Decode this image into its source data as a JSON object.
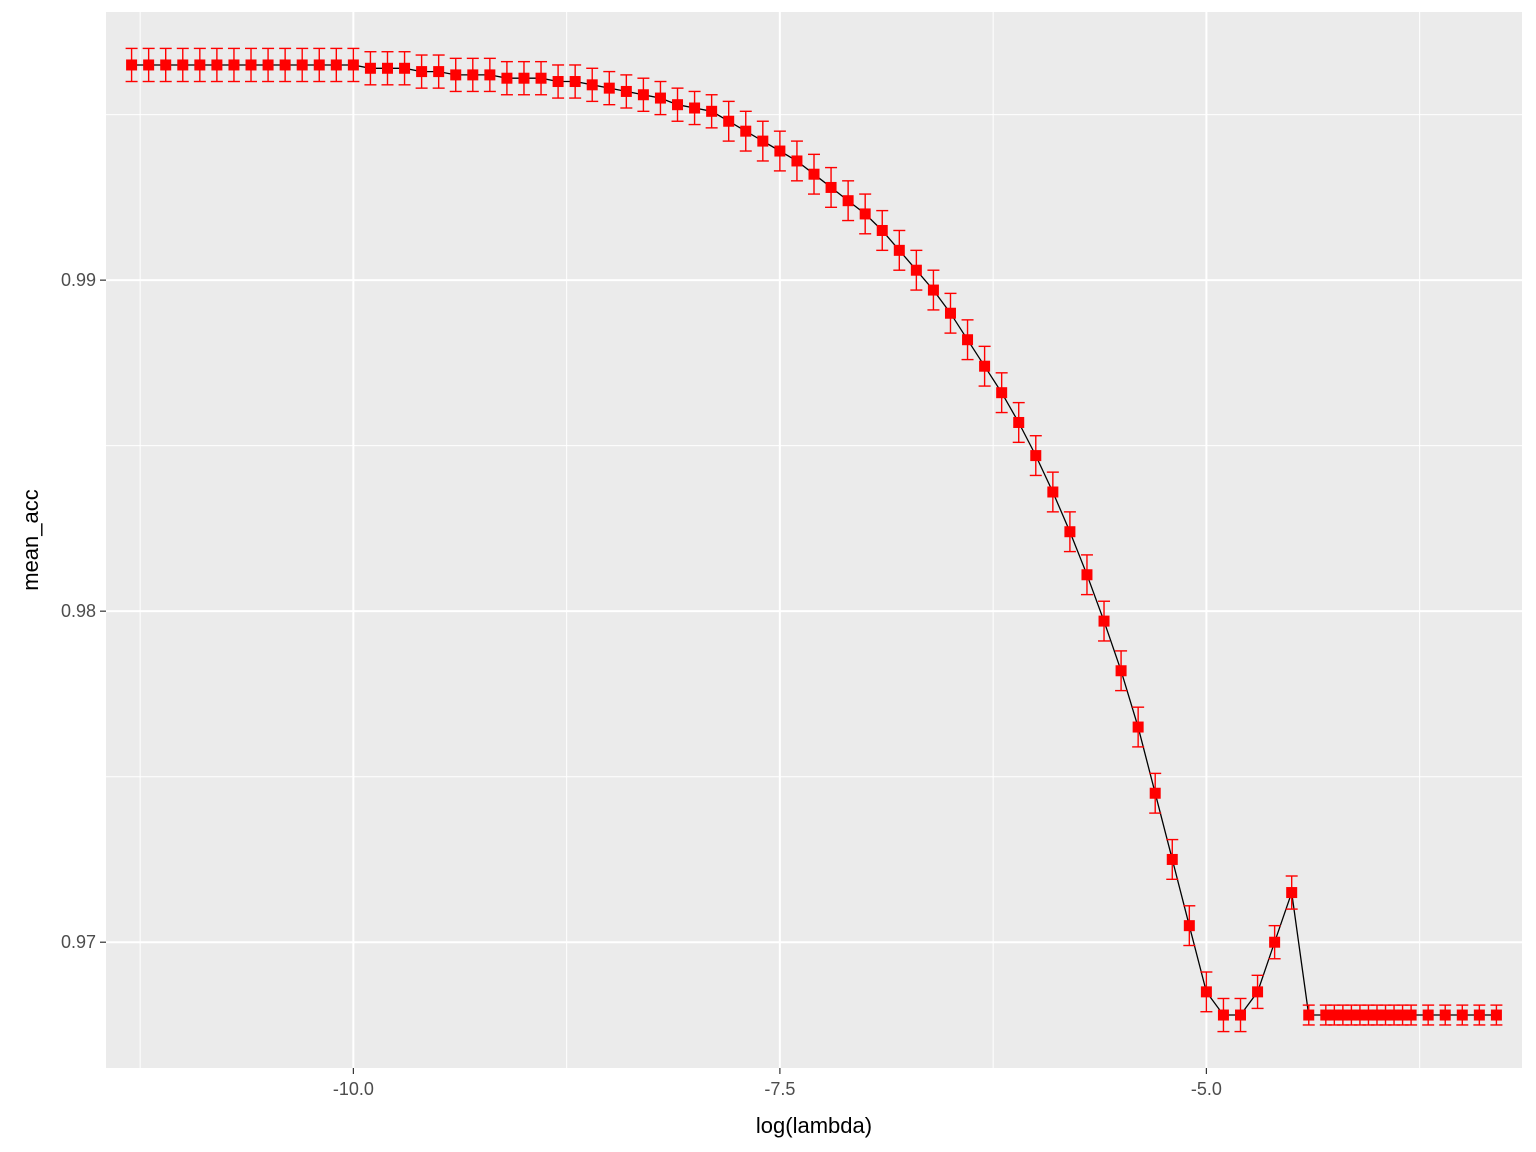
{
  "chart_data": {
    "type": "scatter",
    "xlabel": "log(lambda)",
    "ylabel": "mean_acc",
    "xlim": [
      -11.45,
      -3.15
    ],
    "ylim": [
      0.9662,
      0.9981
    ],
    "x_ticks": [
      -10.0,
      -7.5,
      -5.0
    ],
    "x_tick_labels": [
      "-10.0",
      "-7.5",
      "-5.0"
    ],
    "y_ticks": [
      0.97,
      0.98,
      0.99
    ],
    "y_tick_labels": [
      "0.97",
      "0.98",
      "0.99"
    ],
    "grid": true,
    "background": "#ebebeb",
    "colors": {
      "points": "#ff0000",
      "errorbars": "#ff0000",
      "line": "#000000",
      "grid_major": "#ffffff"
    },
    "series": [
      {
        "type": "line_with_errorbars",
        "x": [
          -11.3,
          -11.2,
          -11.1,
          -11.0,
          -10.9,
          -10.8,
          -10.7,
          -10.6,
          -10.5,
          -10.4,
          -10.3,
          -10.2,
          -10.1,
          -10.0,
          -9.9,
          -9.8,
          -9.7,
          -9.6,
          -9.5,
          -9.4,
          -9.3,
          -9.2,
          -9.1,
          -9.0,
          -8.9,
          -8.8,
          -8.7,
          -8.6,
          -8.5,
          -8.4,
          -8.3,
          -8.2,
          -8.1,
          -8.0,
          -7.9,
          -7.8,
          -7.7,
          -7.6,
          -7.5,
          -7.4,
          -7.3,
          -7.2,
          -7.1,
          -7.0,
          -6.9,
          -6.8,
          -6.7,
          -6.6,
          -6.5,
          -6.4,
          -6.3,
          -6.2,
          -6.1,
          -6.0,
          -5.9,
          -5.8,
          -5.7,
          -5.6,
          -5.5,
          -5.4,
          -5.3,
          -5.2,
          -5.1,
          -5.0,
          -4.9,
          -4.8,
          -4.7,
          -4.6,
          -4.5,
          -4.4,
          -4.3,
          -4.25,
          -4.2,
          -4.15,
          -4.1,
          -4.05,
          -4.0,
          -3.95,
          -3.9,
          -3.85,
          -3.8,
          -3.7,
          -3.6,
          -3.5,
          -3.4,
          -3.3
        ],
        "y": [
          0.9965,
          0.9965,
          0.9965,
          0.9965,
          0.9965,
          0.9965,
          0.9965,
          0.9965,
          0.9965,
          0.9965,
          0.9965,
          0.9965,
          0.9965,
          0.9965,
          0.9964,
          0.9964,
          0.9964,
          0.9963,
          0.9963,
          0.9962,
          0.9962,
          0.9962,
          0.9961,
          0.9961,
          0.9961,
          0.996,
          0.996,
          0.9959,
          0.9958,
          0.9957,
          0.9956,
          0.9955,
          0.9953,
          0.9952,
          0.9951,
          0.9948,
          0.9945,
          0.9942,
          0.9939,
          0.9936,
          0.9932,
          0.9928,
          0.9924,
          0.992,
          0.9915,
          0.9909,
          0.9903,
          0.9897,
          0.989,
          0.9882,
          0.9874,
          0.9866,
          0.9857,
          0.9847,
          0.9836,
          0.9824,
          0.9811,
          0.9797,
          0.9782,
          0.9765,
          0.9745,
          0.9725,
          0.9705,
          0.9685,
          0.9678,
          0.9678,
          0.9685,
          0.97,
          0.9715,
          0.9678,
          0.9678,
          0.9678,
          0.9678,
          0.9678,
          0.9678,
          0.9678,
          0.9678,
          0.9678,
          0.9678,
          0.9678,
          0.9678,
          0.9678,
          0.9678,
          0.9678,
          0.9678,
          0.9678
        ],
        "error": [
          0.0005,
          0.0005,
          0.0005,
          0.0005,
          0.0005,
          0.0005,
          0.0005,
          0.0005,
          0.0005,
          0.0005,
          0.0005,
          0.0005,
          0.0005,
          0.0005,
          0.0005,
          0.0005,
          0.0005,
          0.0005,
          0.0005,
          0.0005,
          0.0005,
          0.0005,
          0.0005,
          0.0005,
          0.0005,
          0.0005,
          0.0005,
          0.0005,
          0.0005,
          0.0005,
          0.0005,
          0.0005,
          0.0005,
          0.0005,
          0.0005,
          0.0006,
          0.0006,
          0.0006,
          0.0006,
          0.0006,
          0.0006,
          0.0006,
          0.0006,
          0.0006,
          0.0006,
          0.0006,
          0.0006,
          0.0006,
          0.0006,
          0.0006,
          0.0006,
          0.0006,
          0.0006,
          0.0006,
          0.0006,
          0.0006,
          0.0006,
          0.0006,
          0.0006,
          0.0006,
          0.0006,
          0.0006,
          0.0006,
          0.0006,
          0.0005,
          0.0005,
          0.0005,
          0.0005,
          0.0005,
          0.0003,
          0.0003,
          0.0003,
          0.0003,
          0.0003,
          0.0003,
          0.0003,
          0.0003,
          0.0003,
          0.0003,
          0.0003,
          0.0003,
          0.0003,
          0.0003,
          0.0003,
          0.0003,
          0.0003
        ]
      }
    ]
  }
}
